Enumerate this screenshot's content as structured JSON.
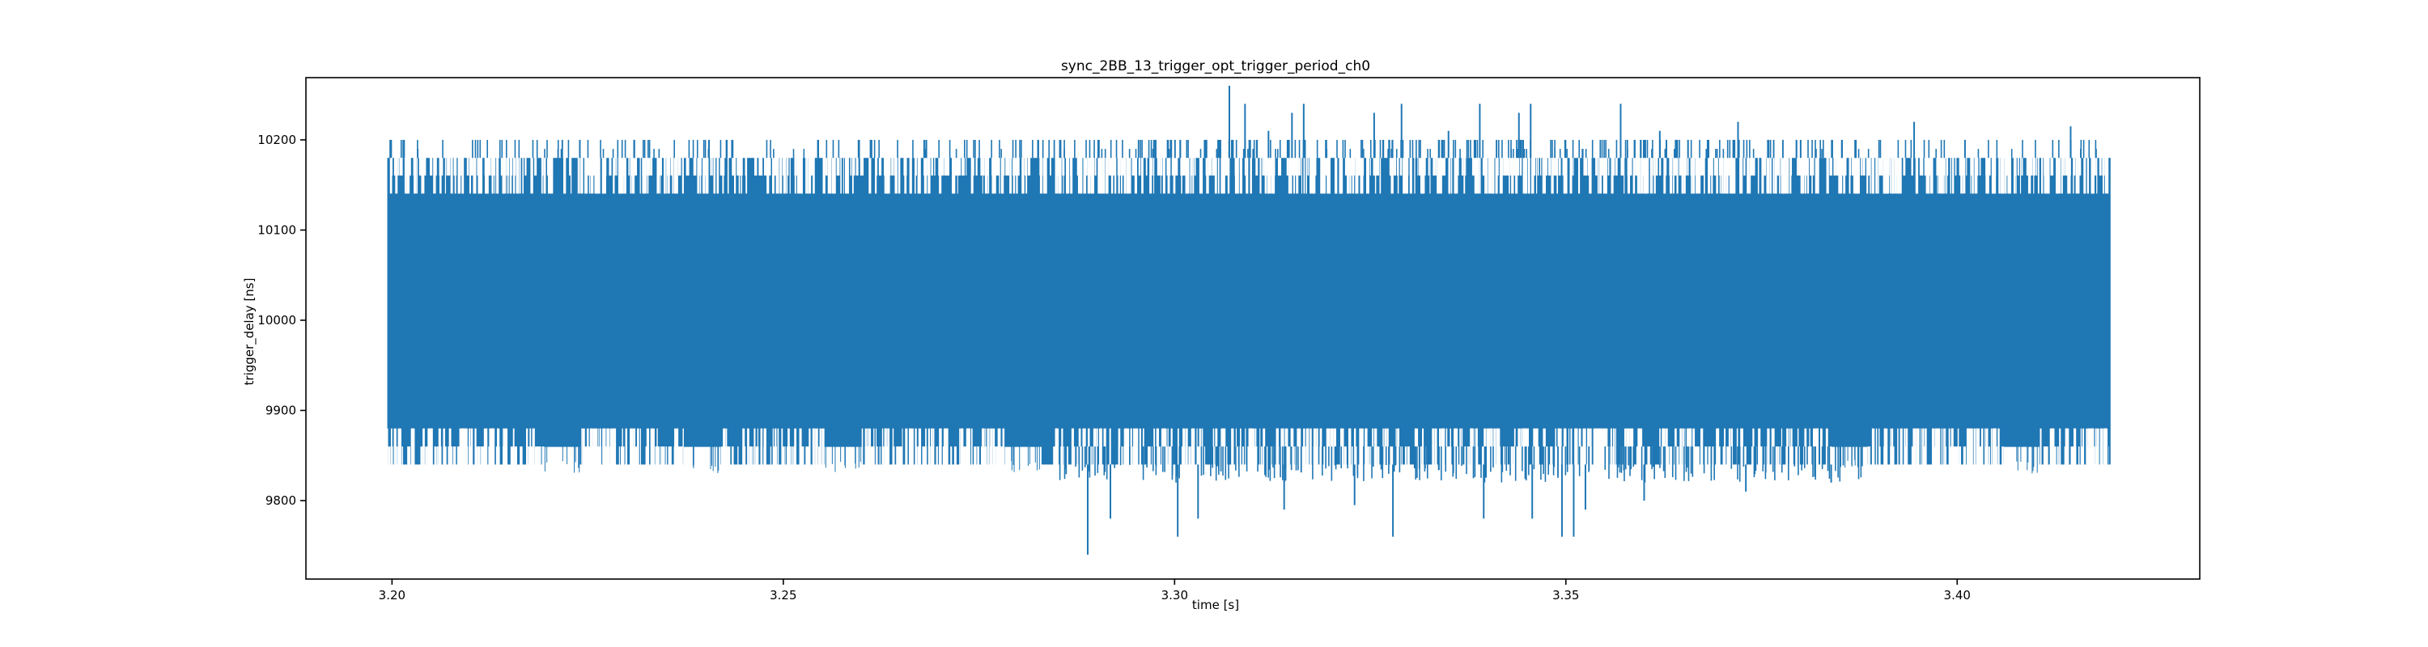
{
  "chart_data": {
    "type": "line",
    "title": "sync_2BB_13_trigger_opt_trigger_period_ch0",
    "xlabel": "time [s]",
    "ylabel": "trigger_delay [ns]",
    "xlim": [
      3.189,
      3.431
    ],
    "ylim": [
      9713,
      10269
    ],
    "x_ticks": [
      3.2,
      3.25,
      3.3,
      3.35,
      3.4
    ],
    "x_tick_labels": [
      "3.20",
      "3.25",
      "3.30",
      "3.35",
      "3.40"
    ],
    "y_ticks": [
      9800,
      9900,
      10000,
      10100,
      10200
    ],
    "y_tick_labels": [
      "9800",
      "9900",
      "10000",
      "10100",
      "10200"
    ],
    "grid": false,
    "legend": "none",
    "series": [
      {
        "color": "#1f77b4",
        "x_range": [
          3.1995,
          3.4195
        ],
        "band_max_top": 10180,
        "band_min_normal": 9840,
        "band_min_gap": 9860,
        "gap_segments": [
          [
            3.2193,
            3.224
          ],
          [
            3.2373,
            3.242
          ],
          [
            3.2553,
            3.26
          ],
          [
            3.2783,
            3.283
          ],
          [
            3.3837,
            3.3885
          ],
          [
            3.4057,
            3.4105
          ]
        ],
        "outliers": [
          [
            3.307,
            10260
          ],
          [
            3.309,
            10240
          ],
          [
            3.315,
            10230
          ],
          [
            3.3165,
            10240
          ],
          [
            3.3255,
            10230
          ],
          [
            3.329,
            10240
          ],
          [
            3.339,
            10240
          ],
          [
            3.344,
            10230
          ],
          [
            3.3455,
            10240
          ],
          [
            3.357,
            10240
          ],
          [
            3.372,
            10220
          ],
          [
            3.3945,
            10220
          ],
          [
            3.4145,
            10215
          ],
          [
            3.304,
            10200
          ],
          [
            3.312,
            10210
          ],
          [
            3.335,
            10210
          ],
          [
            3.362,
            10210
          ],
          [
            3.38,
            10200
          ],
          [
            3.401,
            10200
          ],
          [
            3.224,
            10200
          ],
          [
            3.2405,
            10200
          ],
          [
            3.268,
            10200
          ],
          [
            3.2889,
            9740
          ],
          [
            3.2918,
            9780
          ],
          [
            3.3004,
            9760
          ],
          [
            3.303,
            9780
          ],
          [
            3.314,
            9790
          ],
          [
            3.323,
            9795
          ],
          [
            3.3279,
            9760
          ],
          [
            3.3395,
            9780
          ],
          [
            3.3457,
            9780
          ],
          [
            3.3525,
            9790
          ],
          [
            3.3495,
            9760
          ],
          [
            3.351,
            9760
          ],
          [
            3.36,
            9800
          ],
          [
            3.373,
            9810
          ],
          [
            3.3839,
            9820
          ]
        ]
      }
    ]
  }
}
